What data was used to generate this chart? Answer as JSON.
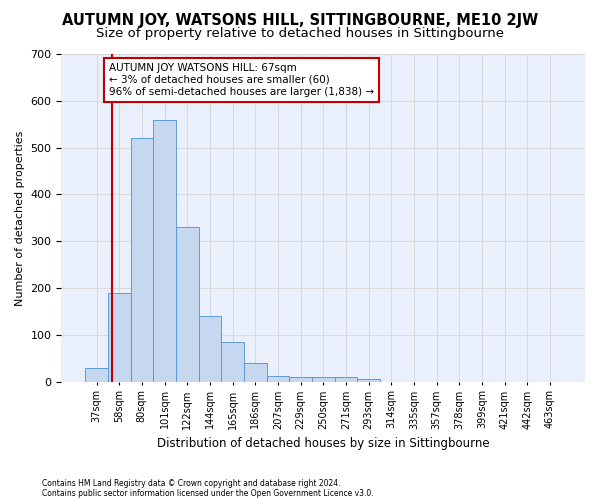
{
  "title": "AUTUMN JOY, WATSONS HILL, SITTINGBOURNE, ME10 2JW",
  "subtitle": "Size of property relative to detached houses in Sittingbourne",
  "xlabel": "Distribution of detached houses by size in Sittingbourne",
  "ylabel": "Number of detached properties",
  "footnote1": "Contains HM Land Registry data © Crown copyright and database right 2024.",
  "footnote2": "Contains public sector information licensed under the Open Government Licence v3.0.",
  "bin_labels": [
    "37sqm",
    "58sqm",
    "80sqm",
    "101sqm",
    "122sqm",
    "144sqm",
    "165sqm",
    "186sqm",
    "207sqm",
    "229sqm",
    "250sqm",
    "271sqm",
    "293sqm",
    "314sqm",
    "335sqm",
    "357sqm",
    "378sqm",
    "399sqm",
    "421sqm",
    "442sqm",
    "463sqm"
  ],
  "bar_values": [
    30,
    190,
    520,
    560,
    330,
    140,
    85,
    40,
    13,
    10,
    10,
    10,
    5,
    0,
    0,
    0,
    0,
    0,
    0,
    0,
    0
  ],
  "bar_color": "#c5d8f0",
  "bar_edge_color": "#5b9bd5",
  "vline_color": "#c00000",
  "vline_position": 0.7,
  "annotation_text": "AUTUMN JOY WATSONS HILL: 67sqm\n← 3% of detached houses are smaller (60)\n96% of semi-detached houses are larger (1,838) →",
  "annotation_box_color": "#c00000",
  "ylim": [
    0,
    700
  ],
  "yticks": [
    0,
    100,
    200,
    300,
    400,
    500,
    600,
    700
  ],
  "grid_color": "#d9d9d9",
  "background_color": "#eaf0fb",
  "title_fontsize": 10.5,
  "subtitle_fontsize": 9.5
}
